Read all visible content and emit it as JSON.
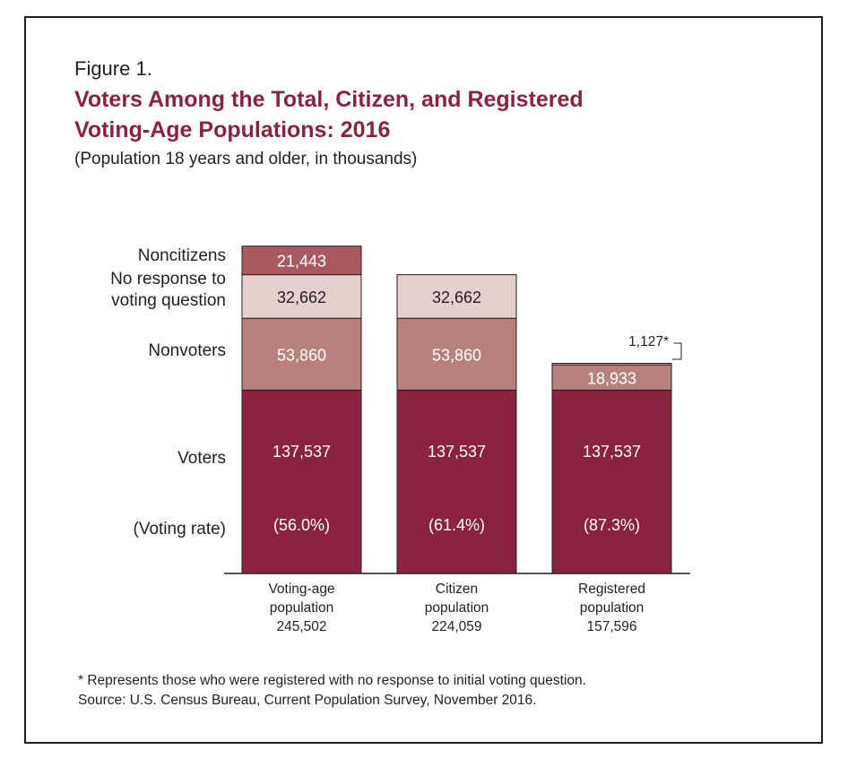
{
  "figure_label": "Figure 1.",
  "title_line1": "Voters Among the Total, Citizen, and Registered",
  "title_line2": "Voting-Age Populations: 2016",
  "subtitle": "(Population 18 years and older, in thousands)",
  "footnote": "* Represents those who were registered with no response to initial voting question.",
  "source": "Source: U.S. Census Bureau, Current Population Survey, November 2016.",
  "colors": {
    "voters": "#8a2340",
    "nonvoters": "#b8817e",
    "no_response": "#e6cfcf",
    "noncitizens": "#a85a60",
    "title": "#8a2340"
  },
  "chart_data": {
    "type": "bar",
    "stacked": true,
    "categories": [
      [
        "Voting-age",
        "population",
        "245,502"
      ],
      [
        "Citizen",
        "population",
        "224,059"
      ],
      [
        "Registered",
        "population",
        "157,596"
      ]
    ],
    "series": [
      {
        "name": "Voters",
        "values": [
          137537,
          137537,
          137537
        ],
        "labels": [
          "137,537",
          "137,537",
          "137,537"
        ],
        "color": "#8a2340"
      },
      {
        "name": "Nonvoters",
        "values": [
          53860,
          53860,
          18933
        ],
        "labels": [
          "53,860",
          "53,860",
          "18,933"
        ],
        "color": "#b8817e"
      },
      {
        "name": "No response to voting question",
        "values": [
          32662,
          32662,
          1127
        ],
        "labels": [
          "32,662",
          "32,662",
          "1,127*"
        ],
        "color": "#e6cfcf"
      },
      {
        "name": "Noncitizens",
        "values": [
          21443,
          0,
          0
        ],
        "labels": [
          "21,443",
          "",
          ""
        ],
        "color": "#a85a60"
      }
    ],
    "voting_rates": [
      "(56.0%)",
      "(61.4%)",
      "(87.3%)"
    ],
    "row_labels": {
      "noncitizens": "Noncitizens",
      "no_response": [
        "No response to",
        "voting question"
      ],
      "nonvoters": "Nonvoters",
      "voters": "Voters",
      "voting_rate": "(Voting rate)"
    },
    "ylim": [
      0,
      250000
    ],
    "grid": false
  }
}
